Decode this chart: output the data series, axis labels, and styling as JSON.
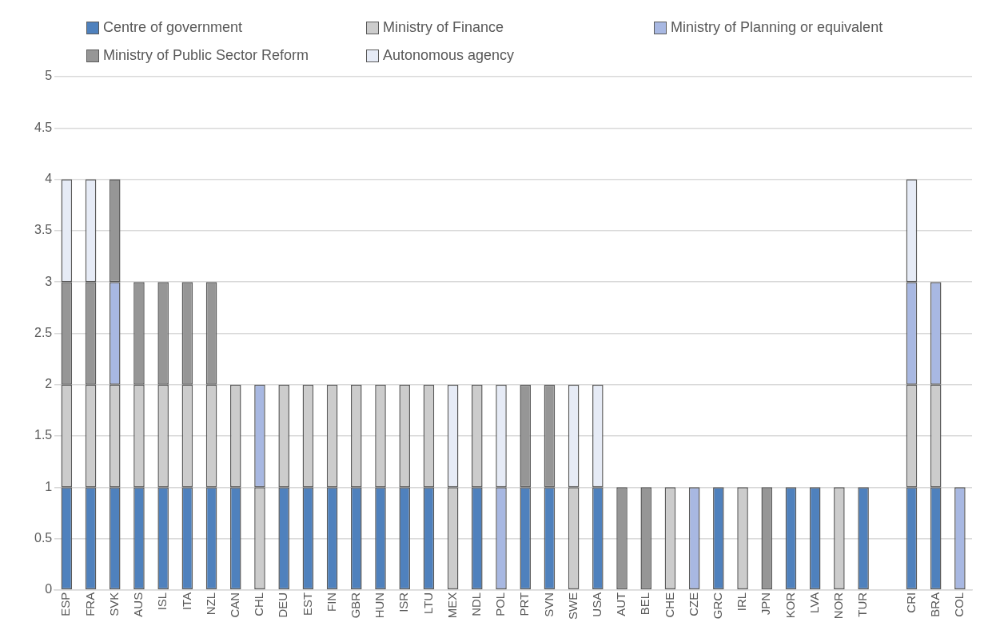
{
  "chart_data": {
    "type": "bar",
    "stacked": true,
    "categories": [
      "ESP",
      "FRA",
      "SVK",
      "AUS",
      "ISL",
      "ITA",
      "NZL",
      "CAN",
      "CHL",
      "DEU",
      "EST",
      "FIN",
      "GBR",
      "HUN",
      "ISR",
      "LTU",
      "MEX",
      "NDL",
      "POL",
      "PRT",
      "SVN",
      "SWE",
      "USA",
      "AUT",
      "BEL",
      "CHE",
      "CZE",
      "GRC",
      "IRL",
      "JPN",
      "KOR",
      "LVA",
      "NOR",
      "TUR",
      null,
      "CRI",
      "BRA",
      "COL"
    ],
    "series": [
      {
        "name": "Centre of government",
        "color": "#4f81bd",
        "values": [
          1,
          1,
          1,
          1,
          1,
          1,
          1,
          1,
          null,
          1,
          1,
          1,
          1,
          1,
          1,
          1,
          null,
          1,
          null,
          1,
          1,
          null,
          1,
          null,
          null,
          null,
          null,
          1,
          null,
          null,
          1,
          1,
          null,
          1,
          null,
          1,
          1,
          null
        ]
      },
      {
        "name": "Ministry of Finance",
        "color": "#cccccc",
        "values": [
          1,
          1,
          1,
          1,
          1,
          1,
          1,
          1,
          1,
          1,
          1,
          1,
          1,
          1,
          1,
          1,
          1,
          1,
          null,
          null,
          null,
          1,
          null,
          null,
          null,
          1,
          null,
          null,
          1,
          null,
          null,
          null,
          1,
          null,
          null,
          1,
          1,
          null
        ]
      },
      {
        "name": "Ministry of Planning or equivalent",
        "color": "#a8b8e2",
        "values": [
          null,
          null,
          1,
          null,
          null,
          null,
          null,
          null,
          1,
          null,
          null,
          null,
          null,
          null,
          null,
          null,
          null,
          null,
          1,
          null,
          null,
          null,
          null,
          null,
          null,
          null,
          1,
          null,
          null,
          null,
          null,
          null,
          null,
          null,
          null,
          1,
          1,
          1
        ]
      },
      {
        "name": "Ministry of Public Sector Reform",
        "color": "#969696",
        "values": [
          1,
          1,
          1,
          1,
          1,
          1,
          1,
          null,
          null,
          null,
          null,
          null,
          null,
          null,
          null,
          null,
          null,
          null,
          null,
          1,
          1,
          null,
          null,
          1,
          1,
          null,
          null,
          null,
          null,
          1,
          null,
          null,
          null,
          null,
          null,
          null,
          null,
          null
        ]
      },
      {
        "name": "Autonomous agency",
        "color": "#e6ebf6",
        "values": [
          1,
          1,
          null,
          null,
          null,
          null,
          null,
          null,
          null,
          null,
          null,
          null,
          null,
          null,
          null,
          null,
          1,
          null,
          1,
          null,
          null,
          1,
          1,
          null,
          null,
          null,
          null,
          null,
          null,
          null,
          null,
          null,
          null,
          null,
          null,
          1,
          null,
          null
        ]
      }
    ],
    "ylim": [
      0,
      5
    ],
    "yticks": [
      0,
      0.5,
      1,
      1.5,
      2,
      2.5,
      3,
      3.5,
      4,
      4.5,
      5
    ],
    "grid": "y",
    "legend": "top"
  }
}
